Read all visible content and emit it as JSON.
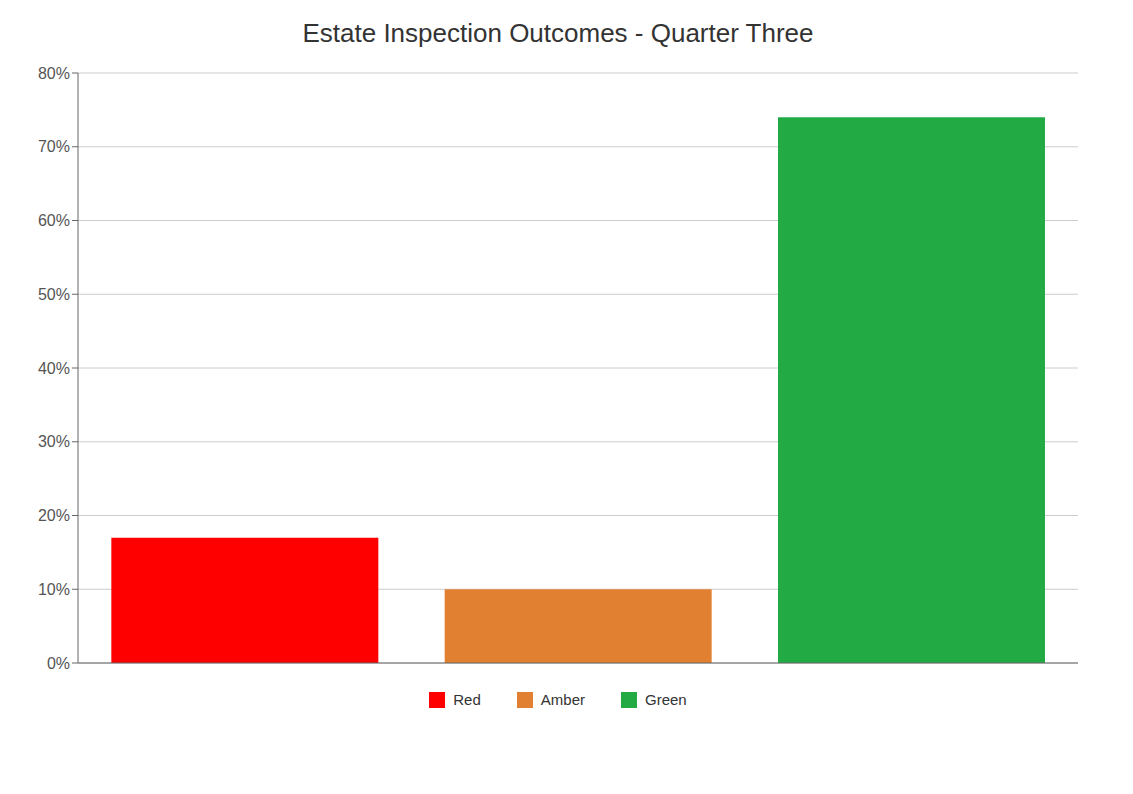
{
  "chart_data": {
    "type": "bar",
    "title": "Estate Inspection Outcomes - Quarter Three",
    "categories": [
      "Red",
      "Amber",
      "Green"
    ],
    "values": [
      17,
      10,
      74
    ],
    "colors": [
      "#ff0000",
      "#e08030",
      "#22aa44"
    ],
    "ylim": [
      0,
      80
    ],
    "yticks": [
      {
        "value": 0,
        "label": "0%"
      },
      {
        "value": 10,
        "label": "10%"
      },
      {
        "value": 20,
        "label": "20%"
      },
      {
        "value": 30,
        "label": "30%"
      },
      {
        "value": 40,
        "label": "40%"
      },
      {
        "value": 50,
        "label": "50%"
      },
      {
        "value": 60,
        "label": "60%"
      },
      {
        "value": 70,
        "label": "70%"
      },
      {
        "value": 80,
        "label": "80%"
      }
    ],
    "grid": true,
    "legend": "bottom",
    "tick_labels": "y"
  }
}
